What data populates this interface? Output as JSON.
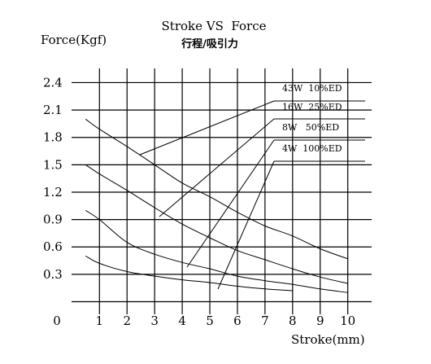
{
  "chart_data": {
    "type": "line",
    "title": "Stroke VS  Force",
    "subtitle": "行程/吸引力",
    "xlabel": "Stroke(mm)",
    "ylabel": "Force(Kgf)",
    "x_ticks": [
      "0",
      "1",
      "2",
      "3",
      "4",
      "5",
      "6",
      "7",
      "8",
      "9",
      "10"
    ],
    "y_ticks": [
      "0.3",
      "0.6",
      "0.9",
      "1.2",
      "1.5",
      "1.8",
      "2.1",
      "2.4"
    ],
    "xlim": [
      0,
      10
    ],
    "ylim": [
      0,
      2.6
    ],
    "grid": true,
    "series": [
      {
        "name": "43W  10%ED",
        "x": [
          0.5,
          1,
          2,
          3,
          4,
          5,
          6,
          7,
          8,
          9,
          10
        ],
        "y": [
          2.0,
          1.89,
          1.7,
          1.5,
          1.3,
          1.15,
          0.98,
          0.83,
          0.72,
          0.58,
          0.47
        ]
      },
      {
        "name": "16W  25%ED",
        "x": [
          0.5,
          1,
          2,
          3,
          4,
          5,
          6,
          7,
          8,
          9,
          10
        ],
        "y": [
          1.5,
          1.4,
          1.22,
          1.03,
          0.85,
          0.7,
          0.56,
          0.46,
          0.36,
          0.27,
          0.2
        ]
      },
      {
        "name": "8W   50%ED",
        "x": [
          0.5,
          1,
          2,
          3,
          4,
          5,
          6,
          7,
          8,
          9,
          10
        ],
        "y": [
          1.0,
          0.9,
          0.65,
          0.52,
          0.43,
          0.36,
          0.28,
          0.23,
          0.19,
          0.14,
          0.1
        ]
      },
      {
        "name": "4W  100%ED",
        "x": [
          0.5,
          1,
          2,
          3,
          4,
          5,
          6,
          7,
          8
        ],
        "y": [
          0.5,
          0.42,
          0.33,
          0.28,
          0.24,
          0.21,
          0.17,
          0.14,
          0.12
        ]
      }
    ]
  }
}
